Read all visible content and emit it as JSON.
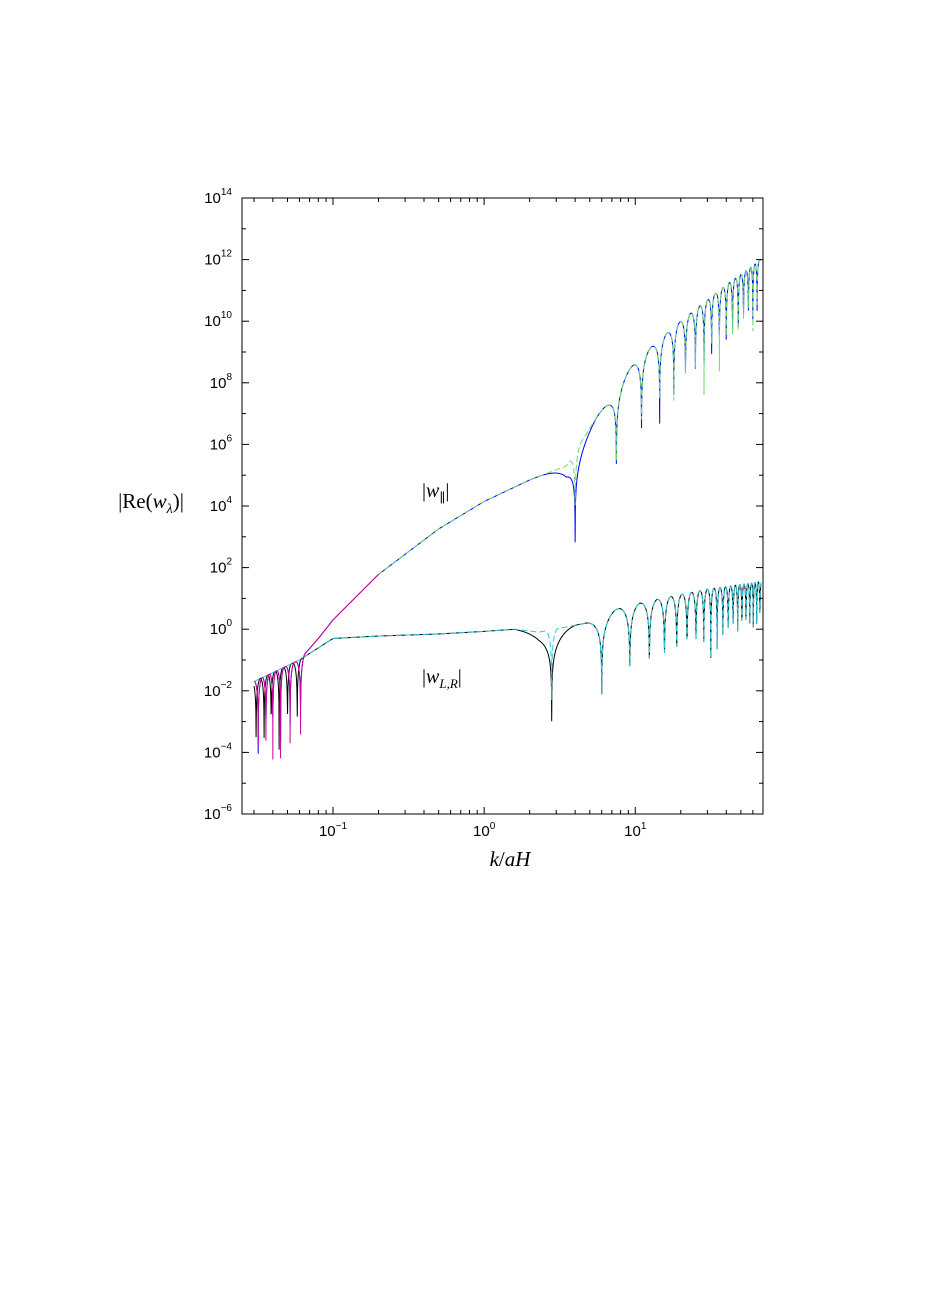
{
  "chart_data": {
    "type": "line",
    "title": "",
    "xlabel": "k/aH",
    "ylabel": "|Re(w_λ)|",
    "x_scale": "log",
    "y_scale": "log",
    "xlim": [
      0.025,
      70
    ],
    "ylim": [
      1e-06,
      100000000000000.0
    ],
    "grid": false,
    "x_ticks": [
      {
        "value": 0.1,
        "base": "10",
        "exp": "−1"
      },
      {
        "value": 1,
        "base": "10",
        "exp": "0"
      },
      {
        "value": 10,
        "base": "10",
        "exp": "1"
      }
    ],
    "y_ticks": [
      {
        "value": 1e-06,
        "base": "10",
        "exp": "−6"
      },
      {
        "value": 0.0001,
        "base": "10",
        "exp": "−4"
      },
      {
        "value": 0.01,
        "base": "10",
        "exp": "−2"
      },
      {
        "value": 1,
        "base": "10",
        "exp": "0"
      },
      {
        "value": 100.0,
        "base": "10",
        "exp": "2"
      },
      {
        "value": 10000.0,
        "base": "10",
        "exp": "4"
      },
      {
        "value": 1000000.0,
        "base": "10",
        "exp": "6"
      },
      {
        "value": 100000000.0,
        "base": "10",
        "exp": "8"
      },
      {
        "value": 10000000000.0,
        "base": "10",
        "exp": "10"
      },
      {
        "value": 1000000000000.0,
        "base": "10",
        "exp": "12"
      },
      {
        "value": 100000000000000.0,
        "base": "10",
        "exp": "14"
      }
    ],
    "annotations": [
      {
        "id": "w-parallel",
        "text": "|w_∥|",
        "x": 0.5,
        "y": 20000.0
      },
      {
        "id": "w-lr",
        "text": "|w_{L,R}|",
        "x": 0.5,
        "y": 0.02
      }
    ],
    "series": [
      {
        "color": "#0000ff",
        "dash": "solid",
        "envelope": [
          [
            0.03,
            0.02
          ],
          [
            0.06,
            0.1
          ],
          [
            0.08,
            0.5
          ],
          [
            0.1,
            2
          ],
          [
            0.2,
            60
          ],
          [
            0.5,
            1800
          ],
          [
            1.0,
            14000.0
          ],
          [
            2.0,
            70000.0
          ],
          [
            3.5,
            200000.0
          ],
          [
            5.5,
            7000000.0
          ],
          [
            10,
            500000000.0
          ],
          [
            20,
            10000000000.0
          ],
          [
            40,
            150000000000.0
          ],
          [
            68,
            1000000000000.0
          ]
        ],
        "zeros": [
          0.032,
          0.036,
          0.04,
          0.045,
          0.052,
          0.061,
          4.0,
          7.5,
          11,
          14.5,
          18,
          21.5,
          25,
          28.5,
          32,
          36,
          40,
          44,
          48,
          52,
          56,
          60,
          64
        ]
      },
      {
        "color": "#000000",
        "dash": "solid",
        "envelope": [
          [
            0.03,
            0.02
          ],
          [
            0.06,
            0.1
          ],
          [
            0.1,
            0.5
          ],
          [
            0.2,
            0.6
          ],
          [
            0.5,
            0.7
          ],
          [
            1.0,
            0.85
          ],
          [
            1.6,
            1.0
          ],
          [
            2.3,
            0.8
          ],
          [
            4.5,
            1.5
          ],
          [
            8,
            5
          ],
          [
            15,
            10
          ],
          [
            30,
            20
          ],
          [
            68,
            35
          ]
        ],
        "zeros": [
          0.031,
          0.035,
          0.039,
          0.044,
          0.05,
          0.058,
          2.8,
          6.0,
          9.2,
          12.4,
          15.6,
          18.8,
          22,
          25.2,
          28.4,
          31.6,
          34.8,
          38,
          41.2,
          44.4,
          47.6,
          50.8,
          54,
          57.2,
          60.4,
          63.6,
          66.8
        ]
      },
      {
        "color": "#22ccdd",
        "dash": "dashed",
        "envelope": [
          [
            0.03,
            0.02
          ],
          [
            0.06,
            0.1
          ],
          [
            0.1,
            0.5
          ],
          [
            0.2,
            0.6
          ],
          [
            0.5,
            0.7
          ],
          [
            1.0,
            0.85
          ],
          [
            1.6,
            1.0
          ],
          [
            2.3,
            0.8
          ],
          [
            4.5,
            1.5
          ],
          [
            8,
            5
          ],
          [
            15,
            10
          ],
          [
            30,
            20
          ],
          [
            68,
            35
          ]
        ],
        "zeros": [
          2.8,
          6.0,
          9.2,
          12.4,
          15.6,
          18.8,
          22,
          25.2,
          28.4,
          31.6,
          34.8,
          38,
          41.2,
          44.4,
          47.6,
          50.8,
          54,
          57.2,
          60.4,
          63.6,
          66.8
        ]
      },
      {
        "color": "#66dd66",
        "dash": "dashed",
        "envelope": [
          [
            0.1,
            2
          ],
          [
            0.2,
            60
          ],
          [
            0.5,
            1800
          ],
          [
            1.0,
            14000.0
          ],
          [
            2.0,
            70000.0
          ],
          [
            3.5,
            200000.0
          ],
          [
            5.5,
            7000000.0
          ],
          [
            10,
            500000000.0
          ],
          [
            20,
            10000000000.0
          ],
          [
            40,
            150000000000.0
          ],
          [
            68,
            1000000000000.0
          ]
        ],
        "zeros": [
          4.0,
          7.5,
          11,
          14.5,
          18,
          21.5,
          25,
          28.5,
          32,
          36,
          40,
          44,
          48,
          52,
          56,
          60,
          64
        ]
      },
      {
        "color": "#cc0099",
        "dash": "solid",
        "envelope": [
          [
            0.03,
            0.02
          ],
          [
            0.06,
            0.1
          ],
          [
            0.08,
            0.5
          ],
          [
            0.1,
            2
          ],
          [
            0.2,
            60
          ]
        ],
        "zeros": [
          0.032,
          0.036,
          0.04,
          0.045,
          0.052,
          0.061
        ]
      }
    ]
  }
}
